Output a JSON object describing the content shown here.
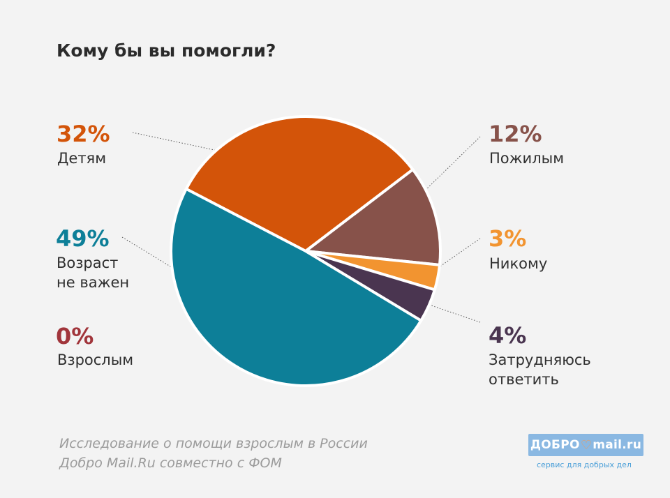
{
  "title": "Кому бы вы помогли?",
  "chart_data": {
    "type": "pie",
    "title": "Кому бы вы помогли?",
    "slices": [
      {
        "label": "Детям",
        "value": 32,
        "display": "32%",
        "color": "#d35409"
      },
      {
        "label": "Пожилым",
        "value": 12,
        "display": "12%",
        "color": "#87524a"
      },
      {
        "label": "Никому",
        "value": 3,
        "display": "3%",
        "color": "#f29430"
      },
      {
        "label": "Затрудняюсь ответить",
        "value": 4,
        "display": "4%",
        "color": "#4a3550"
      },
      {
        "label": "Возраст не важен",
        "value": 49,
        "display": "49%",
        "color": "#0d7f98"
      },
      {
        "label": "Взрослым",
        "value": 0,
        "display": "0%",
        "color": "#a1353b"
      }
    ]
  },
  "labels": {
    "children": {
      "pct": "32%",
      "text": "Детям"
    },
    "elderly": {
      "pct": "12%",
      "text": "Пожилым"
    },
    "nobody": {
      "pct": "3%",
      "text": "Никому"
    },
    "unsure": {
      "pct": "4%",
      "text_1": "Затрудняюсь",
      "text_2": "ответить"
    },
    "any_age": {
      "pct": "49%",
      "text_1": "Возраст",
      "text_2": "не важен"
    },
    "adults": {
      "pct": "0%",
      "text": "Взрослым"
    }
  },
  "source": {
    "line_1": "Исследование о помощи взрослым в России",
    "line_2": "Добро Mail.Ru совместно с ФОМ"
  },
  "logo": {
    "left": "ДОБРО",
    "heart": "♡",
    "right": "mail.ru",
    "tagline": "сервис для добрых дел"
  }
}
